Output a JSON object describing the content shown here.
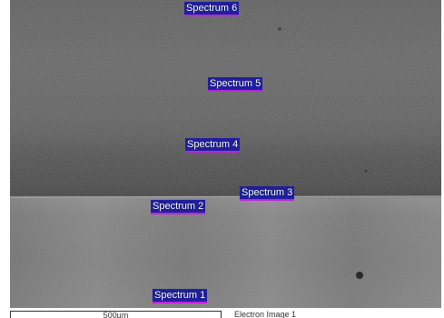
{
  "image": {
    "description_colors": {
      "upper_layer": "#5e5e5e",
      "dark_band": "#3e3e3e",
      "lower_layer": "#7a7a7a",
      "marker_bg": "#1f1f9e",
      "marker_accent": "#c020e0"
    }
  },
  "markers": [
    {
      "label": "Spectrum 6"
    },
    {
      "label": "Spectrum 5"
    },
    {
      "label": "Spectrum 4"
    },
    {
      "label": "Spectrum 3"
    },
    {
      "label": "Spectrum 2"
    },
    {
      "label": "Spectrum 1"
    }
  ],
  "footer": {
    "scale_label": "500µm",
    "caption": "Electron Image 1"
  }
}
